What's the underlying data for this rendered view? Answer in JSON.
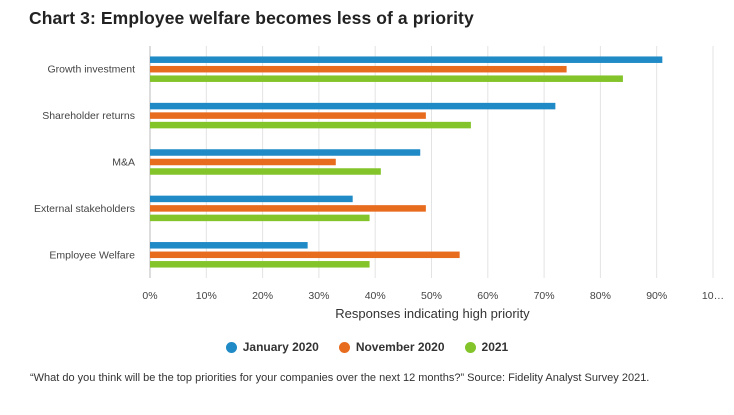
{
  "chart_data": {
    "type": "bar",
    "orientation": "horizontal",
    "title": "Chart 3: Employee welfare becomes less of a priority",
    "xlabel": "Responses indicating high priority",
    "ylabel": "",
    "categories": [
      "Growth investment",
      "Shareholder returns",
      "M&A",
      "External stakeholders",
      "Employee Welfare"
    ],
    "series": [
      {
        "name": "January 2020",
        "color": "#1f8ac6",
        "values": [
          91,
          72,
          48,
          36,
          28
        ]
      },
      {
        "name": "November 2020",
        "color": "#e86c1e",
        "values": [
          74,
          49,
          33,
          49,
          55
        ]
      },
      {
        "name": "2021",
        "color": "#84c42b",
        "values": [
          84,
          57,
          41,
          39,
          39
        ]
      }
    ],
    "xlim": [
      0,
      100
    ],
    "x_ticks": [
      "0%",
      "10%",
      "20%",
      "30%",
      "40%",
      "50%",
      "60%",
      "70%",
      "80%",
      "90%",
      "10…"
    ],
    "grid": true,
    "legend_position": "bottom",
    "footnote": "“What do you think will be the top priorities for your companies over the next 12 months?” Source: Fidelity Analyst Survey 2021."
  }
}
